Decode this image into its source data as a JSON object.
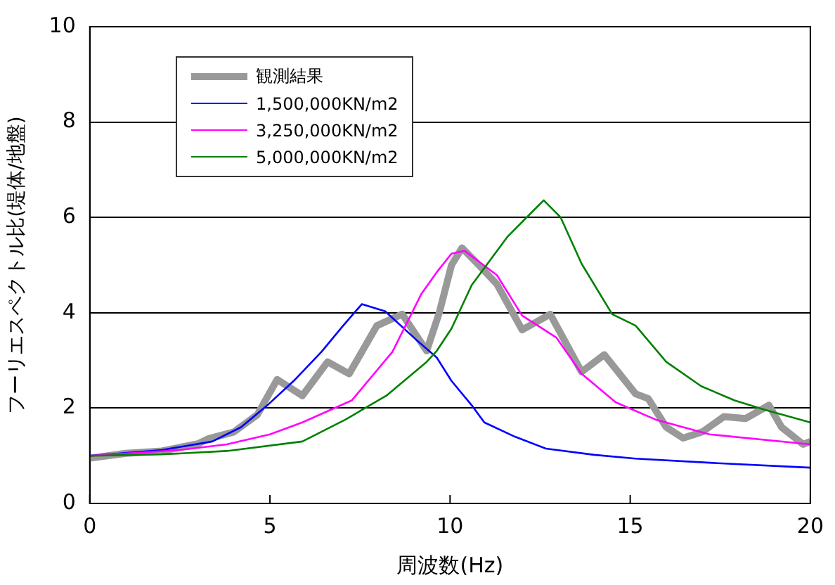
{
  "chart_data": {
    "type": "line",
    "xlabel": "周波数(Hz)",
    "ylabel": "フーリエスペクトル比(堤体/地盤)",
    "xlim": [
      0,
      20
    ],
    "xticks": [
      0,
      5,
      10,
      15,
      20
    ],
    "ylim": [
      0,
      10
    ],
    "yticks": [
      0,
      2,
      4,
      6,
      8,
      10
    ],
    "grid": "y",
    "legend": "top left",
    "marker": "none",
    "series": [
      {
        "name": "観測結果",
        "color": "#999999",
        "x": [
          0,
          1,
          2,
          3,
          3.3,
          4,
          4.65,
          5.2,
          5.9,
          6.6,
          7.2,
          7.97,
          8.67,
          9.35,
          9.7,
          10.04,
          10.33,
          10.8,
          11.3,
          12.0,
          12.78,
          13.65,
          14.28,
          15.15,
          15.5,
          16.0,
          16.47,
          17.0,
          17.6,
          18.2,
          18.85,
          19.2,
          19.8,
          20
        ],
        "values": [
          0.95,
          1.05,
          1.1,
          1.25,
          1.36,
          1.5,
          1.86,
          2.6,
          2.26,
          2.97,
          2.72,
          3.73,
          3.97,
          3.2,
          4.0,
          5.0,
          5.36,
          5.0,
          4.6,
          3.64,
          3.97,
          2.76,
          3.12,
          2.3,
          2.2,
          1.6,
          1.37,
          1.5,
          1.82,
          1.78,
          2.06,
          1.6,
          1.24,
          1.3
        ]
      },
      {
        "name": "1,500,000KN/m2",
        "color": "#0000ff",
        "x": [
          0,
          1.04,
          2,
          3.4,
          4.2,
          4.93,
          5.7,
          6.43,
          7.0,
          7.55,
          8.2,
          9.08,
          9.63,
          10.04,
          10.6,
          10.95,
          11.8,
          12.66,
          14,
          15.15,
          17.3,
          20
        ],
        "values": [
          1.0,
          1.06,
          1.12,
          1.3,
          1.6,
          2.06,
          2.6,
          3.18,
          3.7,
          4.18,
          4.03,
          3.42,
          3.06,
          2.57,
          2.06,
          1.7,
          1.4,
          1.15,
          1.02,
          0.94,
          0.85,
          0.75
        ]
      },
      {
        "name": "3,250,000KN/m2",
        "color": "#ff00ff",
        "x": [
          0,
          1.45,
          2.5,
          3.8,
          5,
          5.9,
          7.27,
          8.4,
          9.2,
          9.63,
          10.04,
          10.4,
          11.3,
          12.0,
          12.95,
          13.65,
          14.6,
          15.7,
          17.2,
          20
        ],
        "values": [
          1.0,
          1.07,
          1.12,
          1.24,
          1.45,
          1.7,
          2.16,
          3.18,
          4.39,
          4.85,
          5.24,
          5.3,
          4.79,
          3.94,
          3.48,
          2.72,
          2.12,
          1.76,
          1.45,
          1.24
        ]
      },
      {
        "name": "5,000,000KN/m2",
        "color": "#008000",
        "x": [
          0,
          2,
          3.8,
          5.9,
          7.1,
          8.25,
          9.35,
          9.63,
          10.04,
          10.6,
          11.6,
          12.6,
          13.07,
          13.65,
          14.5,
          15.15,
          16.0,
          16.97,
          17.9,
          18.75,
          20
        ],
        "values": [
          1.0,
          1.03,
          1.1,
          1.3,
          1.76,
          2.27,
          2.97,
          3.2,
          3.67,
          4.58,
          5.6,
          6.36,
          6.0,
          5.03,
          3.97,
          3.73,
          2.97,
          2.46,
          2.16,
          1.96,
          1.7
        ]
      }
    ]
  }
}
